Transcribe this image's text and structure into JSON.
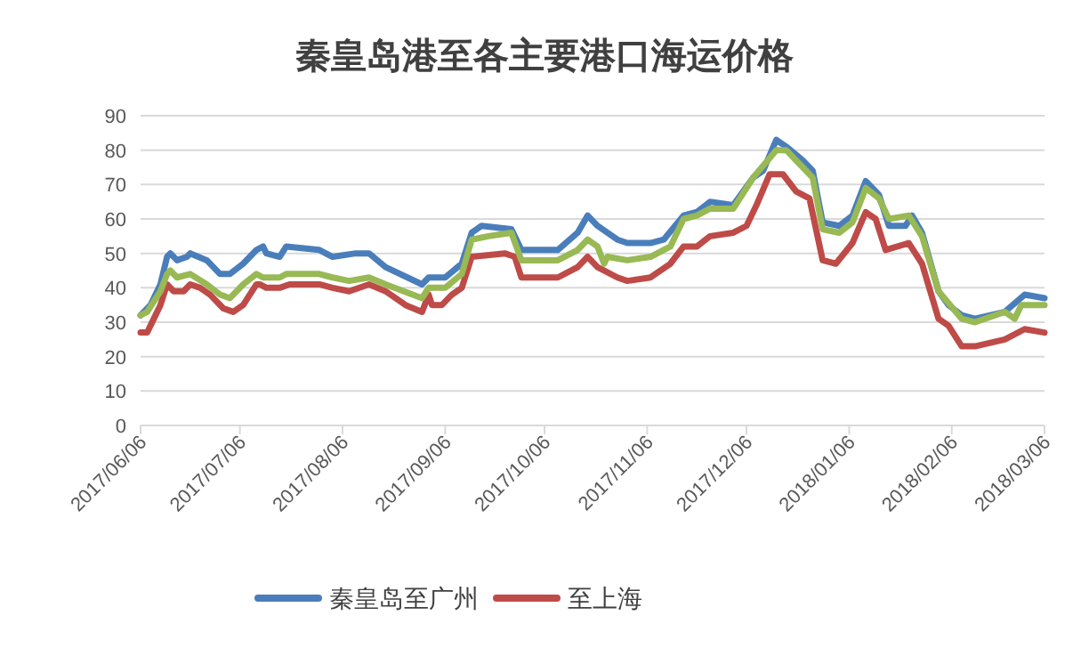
{
  "chart_data": {
    "type": "line",
    "title": "秦皇岛港至各主要港口海运价格",
    "xlim": [
      "2017-06-06",
      "2018-03-06"
    ],
    "ylim": [
      0,
      90
    ],
    "yticks": [
      0,
      10,
      20,
      30,
      40,
      50,
      60,
      70,
      80,
      90
    ],
    "xticks": [
      {
        "value": "2017-06-06",
        "label": "2017/06/06"
      },
      {
        "value": "2017-07-06",
        "label": "2017/07/06"
      },
      {
        "value": "2017-08-06",
        "label": "2017/08/06"
      },
      {
        "value": "2017-09-06",
        "label": "2017/09/06"
      },
      {
        "value": "2017-10-06",
        "label": "2017/10/06"
      },
      {
        "value": "2017-11-06",
        "label": "2017/11/06"
      },
      {
        "value": "2017-12-06",
        "label": "2017/12/06"
      },
      {
        "value": "2018-01-06",
        "label": "2018/01/06"
      },
      {
        "value": "2018-02-06",
        "label": "2018/02/06"
      },
      {
        "value": "2018-03-06",
        "label": "2018/03/06"
      }
    ],
    "grid": "y",
    "legend": "bottom",
    "series": [
      {
        "name": "秦皇岛至广州",
        "color": "#4a7ebb",
        "x": [
          "2017-06-06",
          "2017-06-09",
          "2017-06-12",
          "2017-06-14",
          "2017-06-15",
          "2017-06-17",
          "2017-06-20",
          "2017-06-21",
          "2017-06-26",
          "2017-06-30",
          "2017-07-03",
          "2017-07-07",
          "2017-07-11",
          "2017-07-13",
          "2017-07-14",
          "2017-07-18",
          "2017-07-20",
          "2017-07-30",
          "2017-08-03",
          "2017-08-10",
          "2017-08-14",
          "2017-08-19",
          "2017-08-30",
          "2017-09-01",
          "2017-09-06",
          "2017-09-11",
          "2017-09-14",
          "2017-09-17",
          "2017-09-26",
          "2017-09-29",
          "2017-10-10",
          "2017-10-16",
          "2017-10-19",
          "2017-10-22",
          "2017-10-28",
          "2017-10-31",
          "2017-11-07",
          "2017-11-11",
          "2017-11-17",
          "2017-11-21",
          "2017-11-25",
          "2017-12-02",
          "2017-12-08",
          "2017-12-11",
          "2017-12-15",
          "2017-12-18",
          "2017-12-23",
          "2017-12-26",
          "2017-12-29",
          "2018-01-03",
          "2018-01-07",
          "2018-01-11",
          "2018-01-15",
          "2018-01-18",
          "2018-01-23",
          "2018-01-25",
          "2018-01-28",
          "2018-02-02",
          "2018-02-05",
          "2018-02-09",
          "2018-02-13",
          "2018-02-22",
          "2018-02-28",
          "2018-03-06"
        ],
        "values": [
          32,
          35,
          41,
          49,
          50,
          48,
          49,
          50,
          48,
          44,
          44,
          47,
          51,
          52,
          50,
          49,
          52,
          51,
          49,
          50,
          50,
          46,
          41,
          43,
          43,
          47,
          56,
          58,
          57,
          51,
          51,
          56,
          61,
          58,
          54,
          53,
          53,
          54,
          61,
          62,
          65,
          64,
          72,
          74,
          83,
          81,
          77,
          74,
          59,
          58,
          61,
          71,
          67,
          58,
          58,
          61,
          56,
          39,
          35,
          32,
          31,
          33,
          38,
          37
        ]
      },
      {
        "name": "至上海",
        "color": "#be4b48",
        "x": [
          "2017-06-06",
          "2017-06-08",
          "2017-06-10",
          "2017-06-12",
          "2017-06-14",
          "2017-06-16",
          "2017-06-19",
          "2017-06-21",
          "2017-06-24",
          "2017-06-27",
          "2017-07-01",
          "2017-07-04",
          "2017-07-07",
          "2017-07-11",
          "2017-07-12",
          "2017-07-14",
          "2017-07-18",
          "2017-07-21",
          "2017-07-30",
          "2017-08-03",
          "2017-08-08",
          "2017-08-14",
          "2017-08-19",
          "2017-08-25",
          "2017-08-30",
          "2017-09-01",
          "2017-09-02",
          "2017-09-05",
          "2017-09-08",
          "2017-09-11",
          "2017-09-14",
          "2017-09-24",
          "2017-09-27",
          "2017-09-29",
          "2017-10-10",
          "2017-10-16",
          "2017-10-19",
          "2017-10-22",
          "2017-10-28",
          "2017-10-31",
          "2017-11-07",
          "2017-11-13",
          "2017-11-17",
          "2017-11-21",
          "2017-11-25",
          "2017-12-02",
          "2017-12-06",
          "2017-12-09",
          "2017-12-13",
          "2017-12-17",
          "2017-12-21",
          "2017-12-25",
          "2017-12-29",
          "2018-01-02",
          "2018-01-07",
          "2018-01-11",
          "2018-01-14",
          "2018-01-17",
          "2018-01-24",
          "2018-01-28",
          "2018-02-02",
          "2018-02-05",
          "2018-02-09",
          "2018-02-13",
          "2018-02-22",
          "2018-02-28",
          "2018-03-06"
        ],
        "values": [
          27,
          27,
          31,
          35,
          41,
          39,
          39,
          41,
          40,
          38,
          34,
          33,
          35,
          41,
          41,
          40,
          40,
          41,
          41,
          40,
          39,
          41,
          39,
          35,
          33,
          38,
          35,
          35,
          38,
          40,
          49,
          50,
          49,
          43,
          43,
          46,
          49,
          46,
          43,
          42,
          43,
          47,
          52,
          52,
          55,
          56,
          58,
          64,
          73,
          73,
          68,
          66,
          48,
          47,
          53,
          62,
          60,
          51,
          53,
          47,
          31,
          29,
          23,
          23,
          25,
          28,
          27
        ]
      },
      {
        "color": "#98b954",
        "x": [
          "2017-06-06",
          "2017-06-08",
          "2017-06-12",
          "2017-06-14",
          "2017-06-15",
          "2017-06-17",
          "2017-06-21",
          "2017-06-26",
          "2017-06-30",
          "2017-07-03",
          "2017-07-07",
          "2017-07-11",
          "2017-07-13",
          "2017-07-18",
          "2017-07-20",
          "2017-07-30",
          "2017-08-03",
          "2017-08-08",
          "2017-08-14",
          "2017-08-19",
          "2017-08-30",
          "2017-09-01",
          "2017-09-06",
          "2017-09-11",
          "2017-09-14",
          "2017-09-19",
          "2017-09-26",
          "2017-09-29",
          "2017-10-10",
          "2017-10-16",
          "2017-10-19",
          "2017-10-22",
          "2017-10-24",
          "2017-10-25",
          "2017-10-31",
          "2017-11-07",
          "2017-11-13",
          "2017-11-17",
          "2017-11-21",
          "2017-11-25",
          "2017-12-02",
          "2017-12-08",
          "2017-12-15",
          "2017-12-18",
          "2017-12-23",
          "2017-12-26",
          "2017-12-29",
          "2018-01-03",
          "2018-01-07",
          "2018-01-11",
          "2018-01-15",
          "2018-01-18",
          "2018-01-24",
          "2018-01-28",
          "2018-02-02",
          "2018-02-09",
          "2018-02-13",
          "2018-02-22",
          "2018-02-25",
          "2018-02-27",
          "2018-03-06"
        ],
        "values": [
          32,
          33,
          39,
          44,
          45,
          43,
          44,
          41,
          38,
          37,
          41,
          44,
          43,
          43,
          44,
          44,
          43,
          42,
          43,
          41,
          37,
          40,
          40,
          44,
          54,
          55,
          56,
          48,
          48,
          51,
          54,
          52,
          47,
          49,
          48,
          49,
          52,
          60,
          61,
          63,
          63,
          72,
          80,
          80,
          75,
          72,
          57,
          56,
          59,
          69,
          66,
          60,
          61,
          55,
          39,
          31,
          30,
          33,
          31,
          35,
          35
        ]
      }
    ]
  }
}
